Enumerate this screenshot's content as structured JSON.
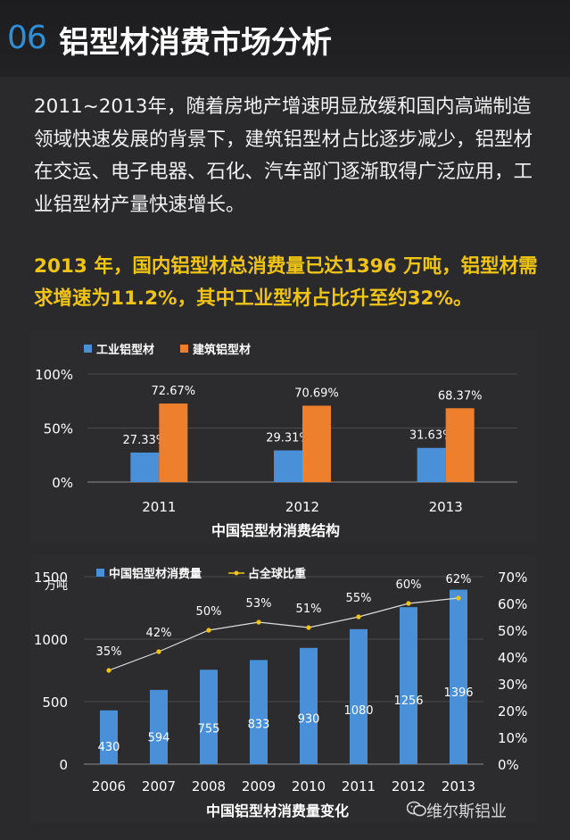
{
  "header": {
    "number": "06",
    "title": "铝型材消费市场分析"
  },
  "intro_text": "2011~2013年，随着房地产增速明显放缓和国内高端制造领域快速发展的背景下，建筑铝型材占比逐步减少，铝型材在交运、电子电器、石化、汽车部门逐渐取得广泛应用，工业铝型材产量快速增长。",
  "highlight_text": "2013 年，国内铝型材总消费量已达1396 万吨，铝型材需求增速为11.2%，其中工业型材占比升至约32%。",
  "watermark": "维尔斯铝业",
  "colors": {
    "blue": "#4a90d9",
    "orange": "#ee7f2d",
    "gold": "#f0c414",
    "line": "#e6e6e6"
  },
  "chart_data": [
    {
      "type": "bar",
      "title": "中国铝型材消费结构",
      "categories": [
        "2011",
        "2012",
        "2013"
      ],
      "series": [
        {
          "name": "工业铝型材",
          "values": [
            27.33,
            29.31,
            31.63
          ],
          "labels": [
            "27.33%",
            "29.31%",
            "31.63%"
          ],
          "color": "#4a90d9"
        },
        {
          "name": "建筑铝型材",
          "values": [
            72.67,
            70.69,
            68.37
          ],
          "labels": [
            "72.67%",
            "70.69%",
            "68.37%"
          ],
          "color": "#ee7f2d"
        }
      ],
      "yticks": [
        "0%",
        "50%",
        "100%"
      ],
      "ylim": [
        0,
        100
      ],
      "grid": true,
      "legend": "top-left"
    },
    {
      "type": "bar",
      "title": "中国铝型材消费量变化",
      "categories": [
        "2006",
        "2007",
        "2008",
        "2009",
        "2010",
        "2011",
        "2012",
        "2013"
      ],
      "series": [
        {
          "name": "中国铝型材消费量",
          "values": [
            430,
            594,
            755,
            833,
            930,
            1080,
            1256,
            1396
          ],
          "labels": [
            "430",
            "594",
            "755",
            "833",
            "930",
            "1080",
            "1256",
            "1396"
          ],
          "color": "#4a90d9",
          "axis": "left"
        },
        {
          "name": "占全球比重",
          "type": "line",
          "values": [
            35,
            42,
            50,
            53,
            51,
            55,
            60,
            62
          ],
          "labels": [
            "35%",
            "42%",
            "50%",
            "53%",
            "51%",
            "55%",
            "60%",
            "62%"
          ],
          "color": "#f0c414",
          "axis": "right"
        }
      ],
      "ylabel": "万吨",
      "yticks_left": [
        "0",
        "500",
        "1000",
        "1500"
      ],
      "ylim_left": [
        0,
        1500
      ],
      "yticks_right": [
        "0%",
        "10%",
        "20%",
        "30%",
        "40%",
        "50%",
        "60%",
        "70%"
      ],
      "ylim_right": [
        0,
        70
      ],
      "grid": true,
      "legend": "top"
    }
  ]
}
